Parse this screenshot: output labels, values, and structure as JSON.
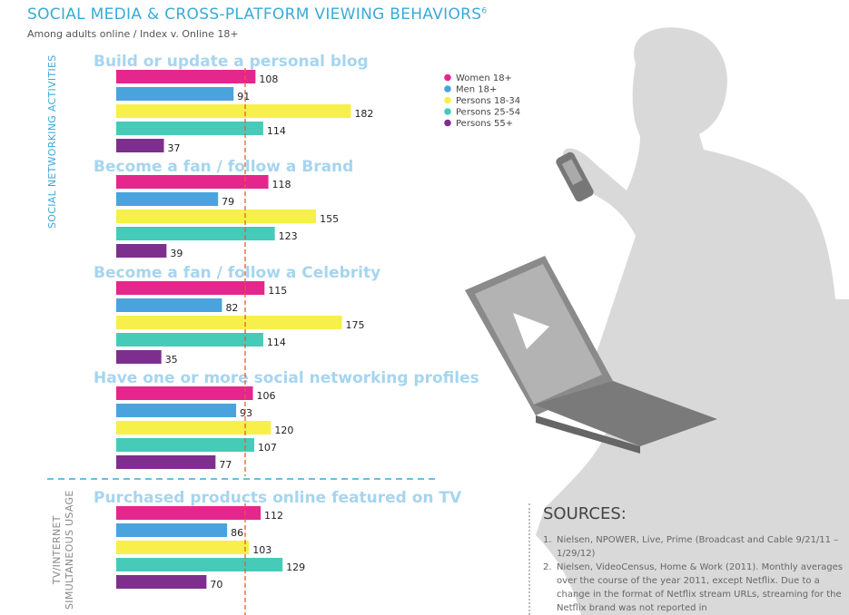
{
  "title": "SOCIAL MEDIA & CROSS-PLATFORM VIEWING BEHAVIORS",
  "title_sup": "6",
  "subtitle": "Among adults online / Index v. Online 18+",
  "section_labels": {
    "social": "SOCIAL NETWORKING ACTIVITIES",
    "tv_line1": "TV/INTERNET",
    "tv_line2": "SIMULTANEOUS USAGE"
  },
  "colors": {
    "title": "#3aaad8",
    "group_title": "#a6d5ef",
    "reference_line": "#e85a2a",
    "divider": "#3aaad8",
    "silhouette": "#d9d9d9",
    "laptop": "#8a8a8a"
  },
  "chart_data": {
    "type": "bar",
    "orientation": "horizontal",
    "reference_value": 100,
    "series": [
      {
        "name": "Women 18+",
        "color": "#e5268c"
      },
      {
        "name": "Men 18+",
        "color": "#4aa3dd"
      },
      {
        "name": "Persons 18-34",
        "color": "#f7ef4a"
      },
      {
        "name": "Persons 25-54",
        "color": "#45cbb8"
      },
      {
        "name": "Persons 55+",
        "color": "#7e2f8e"
      }
    ],
    "groups": [
      {
        "label": "Build or update a personal blog",
        "values": [
          108,
          91,
          182,
          114,
          37
        ]
      },
      {
        "label": "Become a fan / follow a Brand",
        "values": [
          118,
          79,
          155,
          123,
          39
        ]
      },
      {
        "label": "Become a fan / follow a Celebrity",
        "values": [
          115,
          82,
          175,
          114,
          35
        ]
      },
      {
        "label": "Have one or more social networking profiles",
        "values": [
          106,
          93,
          120,
          107,
          77
        ]
      },
      {
        "label": "Purchased products online featured on TV",
        "values": [
          112,
          86,
          103,
          129,
          70
        ]
      }
    ],
    "legend_position": "top-right",
    "grid": false
  },
  "sources": {
    "title": "SOURCES:",
    "items": [
      {
        "num": "1.",
        "text": "Nielsen, NPOWER, Live, Prime (Broadcast and Cable 9/21/11 – 1/29/12)"
      },
      {
        "num": "2.",
        "text": "Nielsen, VideoCensus, Home & Work (2011). Monthly averages over the course of the year 2011, except Netflix. Due to a change in the format of Netflix stream URLs, streaming for the Netflix brand was not reported in"
      }
    ]
  }
}
